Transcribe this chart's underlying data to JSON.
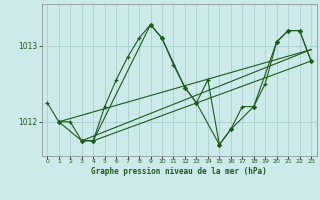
{
  "title": "Graphe pression niveau de la mer (hPa)",
  "background_color": "#cceaea",
  "grid_color": "#aacfcf",
  "line_color": "#1a5c1a",
  "xlim": [
    -0.5,
    23.5
  ],
  "ylim": [
    1011.55,
    1013.55
  ],
  "yticks": [
    1012,
    1013
  ],
  "xtick_labels": [
    "0",
    "1",
    "2",
    "3",
    "4",
    "5",
    "6",
    "7",
    "8",
    "9",
    "10",
    "11",
    "12",
    "13",
    "14",
    "15",
    "16",
    "17",
    "18",
    "19",
    "20",
    "21",
    "22",
    "23"
  ],
  "xticks": [
    0,
    1,
    2,
    3,
    4,
    5,
    6,
    7,
    8,
    9,
    10,
    11,
    12,
    13,
    14,
    15,
    16,
    17,
    18,
    19,
    20,
    21,
    22,
    23
  ],
  "series1_x": [
    0,
    1,
    2,
    3,
    4,
    5,
    6,
    7,
    8,
    9,
    10,
    11,
    12,
    13,
    14,
    15,
    16,
    17,
    18,
    19,
    20,
    21,
    22,
    23
  ],
  "series1_y": [
    1012.25,
    1012.0,
    1012.0,
    1011.75,
    1011.75,
    1012.2,
    1012.55,
    1012.85,
    1013.1,
    1013.28,
    1013.1,
    1012.75,
    1012.45,
    1012.25,
    1012.55,
    1011.7,
    1011.9,
    1012.2,
    1012.2,
    1012.5,
    1013.05,
    1013.2,
    1013.2,
    1012.8
  ],
  "series2_x": [
    1,
    3,
    4,
    9,
    10,
    12,
    13,
    15,
    16,
    18,
    20,
    21,
    22,
    23
  ],
  "series2_y": [
    1012.0,
    1011.75,
    1011.75,
    1013.28,
    1013.1,
    1012.45,
    1012.25,
    1011.7,
    1011.9,
    1012.2,
    1013.05,
    1013.2,
    1013.2,
    1012.8
  ],
  "trend1_x": [
    1,
    23
  ],
  "trend1_y": [
    1012.0,
    1012.95
  ],
  "trend2_x": [
    3,
    23
  ],
  "trend2_y": [
    1011.75,
    1012.95
  ],
  "trend3_x": [
    4,
    23
  ],
  "trend3_y": [
    1011.75,
    1012.8
  ]
}
